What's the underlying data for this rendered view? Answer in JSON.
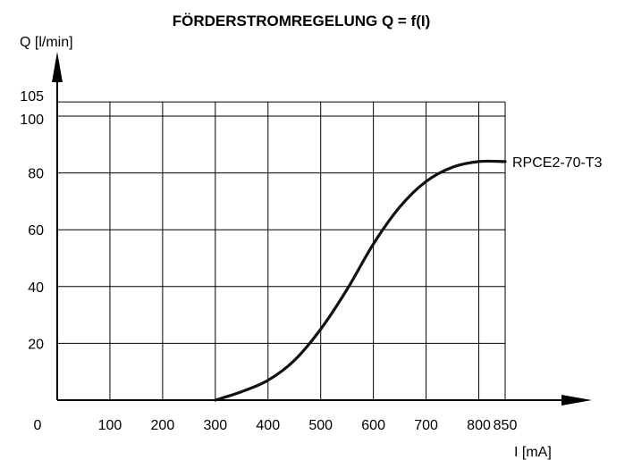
{
  "chart_data": {
    "type": "line",
    "title": "FÖRDERSTROMREGELUNG Q = f(I)",
    "xlabel": "I [mA]",
    "ylabel": "Q [l/min]",
    "origin_label": "0",
    "xlim": [
      0,
      850
    ],
    "ylim": [
      0,
      105
    ],
    "x_ticks": [
      100,
      200,
      300,
      400,
      500,
      600,
      700,
      800,
      850
    ],
    "y_ticks": [
      20,
      40,
      60,
      80,
      100,
      105
    ],
    "grid": true,
    "series": [
      {
        "name": "RPCE2-70-T3",
        "x": [
          300,
          350,
          400,
          450,
          500,
          550,
          600,
          650,
          700,
          750,
          800,
          850
        ],
        "y": [
          0,
          3,
          7,
          14,
          25,
          39,
          55,
          68,
          77,
          82,
          84,
          84
        ]
      }
    ]
  },
  "colors": {
    "line": "#111111",
    "grid": "#000000",
    "axis": "#000000"
  }
}
